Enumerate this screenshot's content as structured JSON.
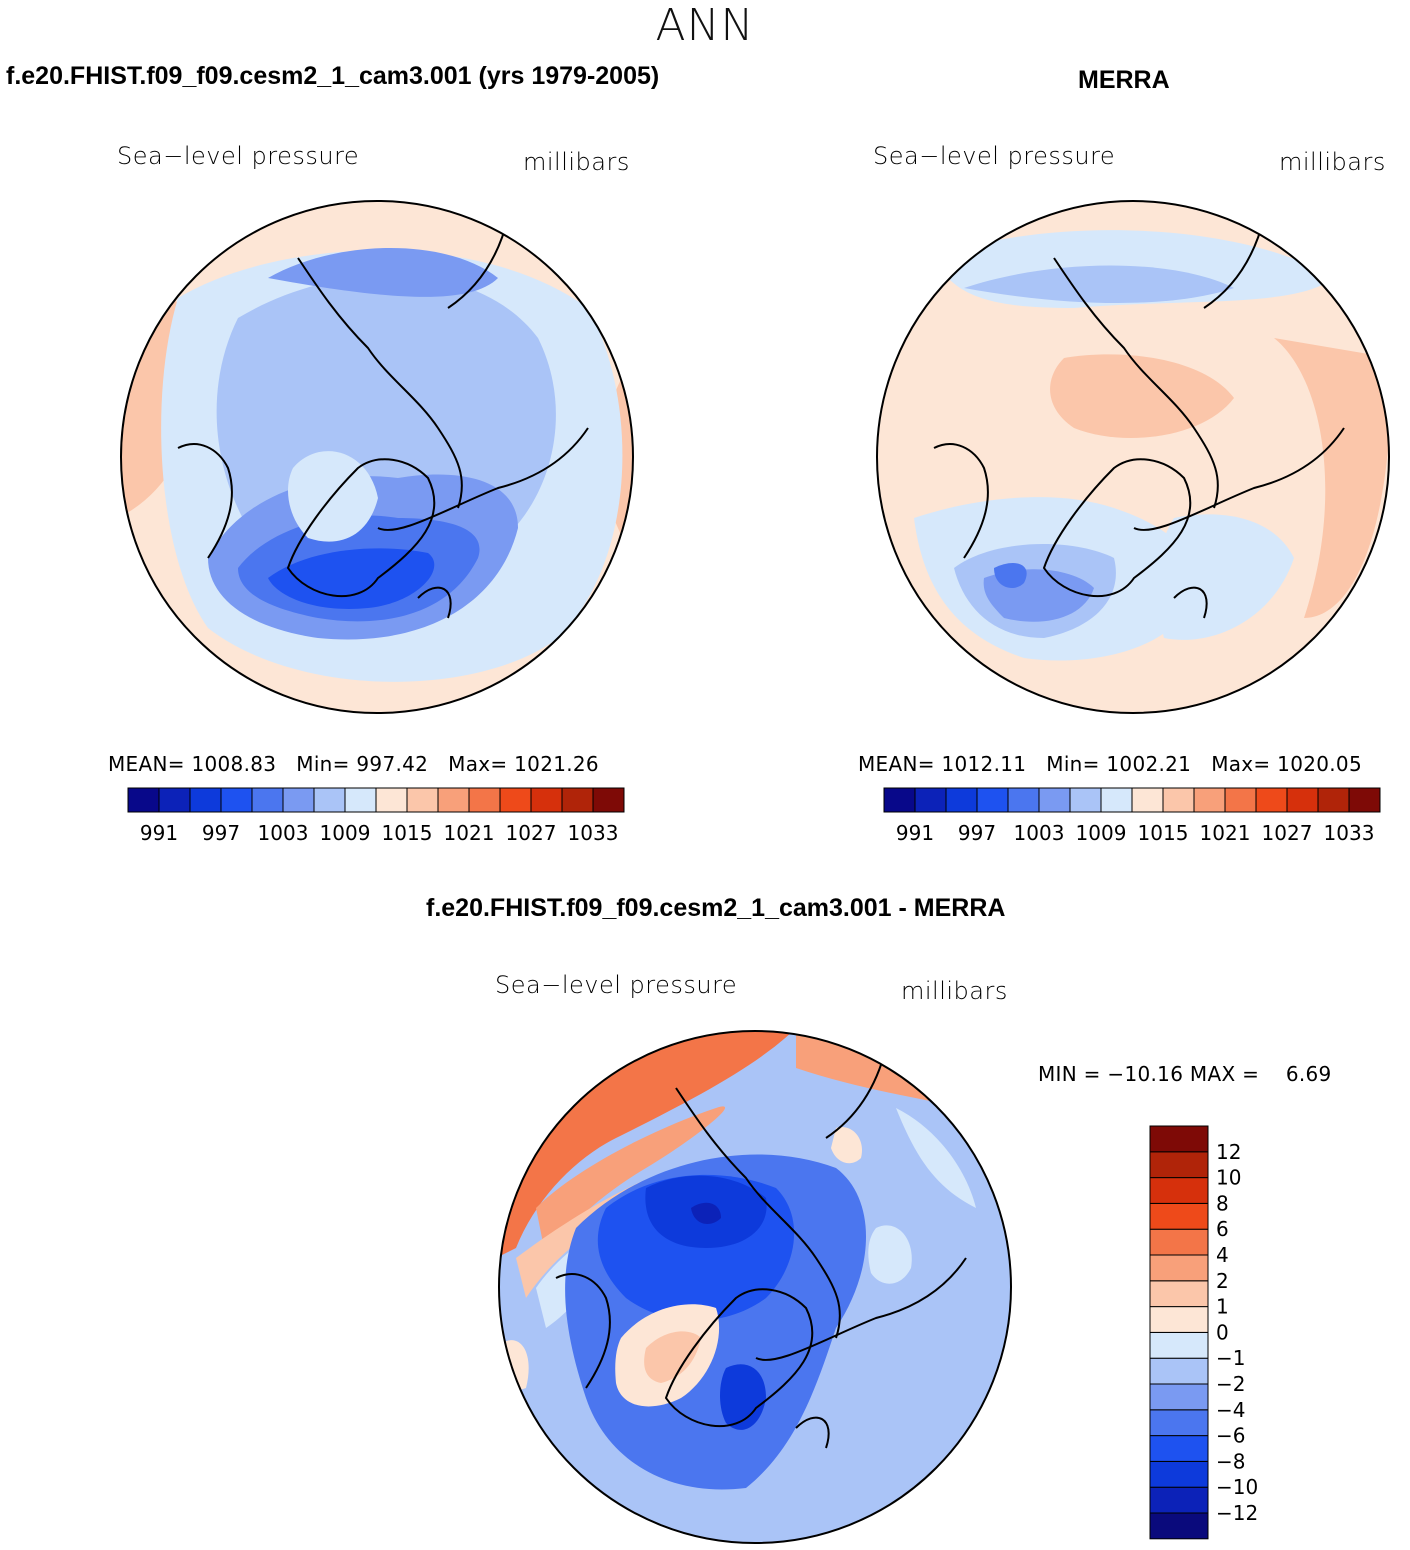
{
  "main_title": "ANN",
  "left": {
    "title": "f.e20.FHIST.f09_f09.cesm2_1_cam3.001 (yrs 1979-2005)",
    "field": "Sea−level pressure",
    "units": "millibars",
    "stats": {
      "mean_label": "MEAN=",
      "mean": "1008.83",
      "min_label": "Min=",
      "min": "997.42",
      "max_label": "Max=",
      "max": "1021.26"
    }
  },
  "right": {
    "title": "MERRA",
    "field": "Sea−level pressure",
    "units": "millibars",
    "stats": {
      "mean_label": "MEAN=",
      "mean": "1012.11",
      "min_label": "Min=",
      "min": "1002.21",
      "max_label": "Max=",
      "max": "1020.05"
    }
  },
  "diff": {
    "title": "f.e20.FHIST.f09_f09.cesm2_1_cam3.001 - MERRA",
    "field": "Sea−level pressure",
    "units": "millibars",
    "minmax": {
      "min_label": "MIN =",
      "min": "−10.16",
      "max_label": "MAX =",
      "max": "6.69"
    }
  },
  "abs_colorbar": {
    "colors": [
      "#08088a",
      "#0c22b8",
      "#0d3adb",
      "#1e52f0",
      "#4b76ef",
      "#7a9af2",
      "#aac4f7",
      "#d6e8fb",
      "#fde6d6",
      "#fbc6aa",
      "#f8a07a",
      "#f37548",
      "#ee4a1a",
      "#d6300c",
      "#b02409",
      "#7e0a06"
    ],
    "tick_labels": [
      "991",
      "997",
      "1003",
      "1009",
      "1015",
      "1021",
      "1027",
      "1033"
    ]
  },
  "diff_colorbar": {
    "colors": [
      "#0a0a7c",
      "#0c22b8",
      "#0d3adb",
      "#1e52f0",
      "#4b76ef",
      "#7a9af2",
      "#aac4f7",
      "#d6e8fb",
      "#fde6d6",
      "#fbc6aa",
      "#f8a07a",
      "#f37548",
      "#ee4a1a",
      "#d6300c",
      "#b02409",
      "#7e0a06"
    ],
    "tick_labels": [
      "−12",
      "−10",
      "−8",
      "−6",
      "−4",
      "−2",
      "−1",
      "0",
      "1",
      "2",
      "4",
      "6",
      "8",
      "10",
      "12"
    ]
  }
}
